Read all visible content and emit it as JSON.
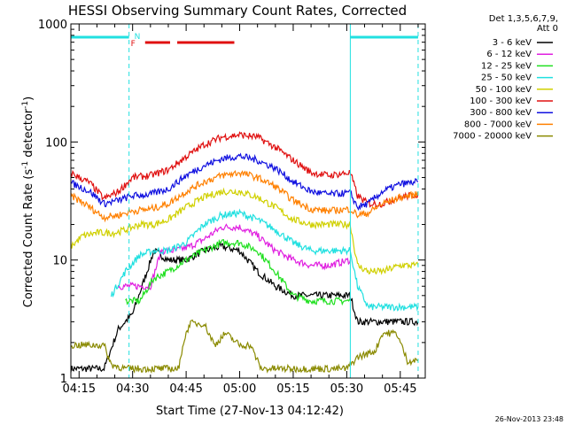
{
  "chart_data": {
    "type": "line",
    "title": "HESSI Observing Summary Count Rates, Corrected",
    "xlabel": "Start Time (27-Nov-13 04:12:42)",
    "ylabel_main": "Corrected Count Rate (s",
    "ylabel_sup1": "-1",
    "ylabel_mid": " detector",
    "ylabel_sup2": "-1",
    "ylabel_end": ")",
    "yscale": "log",
    "ylim": [
      1,
      1000
    ],
    "y_tick_labels": [
      "1",
      "10",
      "100",
      "1000"
    ],
    "x_tick_labels": [
      "04:15",
      "04:30",
      "04:45",
      "05:00",
      "05:15",
      "05:30",
      "05:45"
    ],
    "x_ticks_min": [
      255,
      270,
      285,
      300,
      315,
      330,
      345
    ],
    "xlim_min": [
      252.7,
      352
    ],
    "legend_header": [
      "Det 1,3,5,6,7,9,",
      "Att 0"
    ],
    "legend_position": "right",
    "timestamp": "26-Nov-2013 23:48",
    "flags": {
      "night": [
        [
          252.7,
          269
        ],
        [
          331,
          350
        ]
      ],
      "flare": [
        [
          273.5,
          280.5
        ],
        [
          282.5,
          298.5
        ]
      ],
      "night_label": "N",
      "flare_label": "F",
      "night_color": "#22e0e0",
      "flare_color": "#e01010"
    },
    "boundary_markers_min": [
      269,
      331,
      350
    ],
    "series": [
      {
        "name": "3 - 6 keV",
        "color": "#000000",
        "values": [
          [
            252.7,
            1.2
          ],
          [
            262,
            1.2
          ],
          [
            266,
            2.6
          ],
          [
            270,
            3.5
          ],
          [
            276,
            12
          ],
          [
            280,
            10
          ],
          [
            285,
            10
          ],
          [
            290,
            12
          ],
          [
            295,
            13
          ],
          [
            300,
            12
          ],
          [
            305,
            8
          ],
          [
            310,
            6
          ],
          [
            315,
            5
          ],
          [
            320,
            5
          ],
          [
            325,
            5
          ],
          [
            331,
            5
          ],
          [
            333,
            3
          ],
          [
            336,
            3
          ],
          [
            340,
            3
          ],
          [
            345,
            3
          ],
          [
            350,
            3
          ]
        ]
      },
      {
        "name": "6 - 12 keV",
        "color": "#e020e0",
        "values": [
          [
            266,
            6
          ],
          [
            270,
            6
          ],
          [
            275,
            6
          ],
          [
            278,
            12
          ],
          [
            282,
            12
          ],
          [
            286,
            13
          ],
          [
            290,
            15
          ],
          [
            295,
            19
          ],
          [
            300,
            19
          ],
          [
            305,
            16
          ],
          [
            310,
            12
          ],
          [
            315,
            10
          ],
          [
            320,
            9
          ],
          [
            325,
            9
          ],
          [
            331,
            10
          ]
        ]
      },
      {
        "name": "12 - 25 keV",
        "color": "#20e020",
        "values": [
          [
            268,
            4.5
          ],
          [
            272,
            4.5
          ],
          [
            276,
            7
          ],
          [
            280,
            8
          ],
          [
            285,
            10
          ],
          [
            290,
            12
          ],
          [
            295,
            14
          ],
          [
            300,
            14
          ],
          [
            305,
            12
          ],
          [
            310,
            8
          ],
          [
            315,
            5
          ],
          [
            320,
            4.5
          ],
          [
            325,
            4.5
          ],
          [
            331,
            4.5
          ]
        ]
      },
      {
        "name": "25 - 50 keV",
        "color": "#20e0e0",
        "values": [
          [
            264,
            5
          ],
          [
            268,
            8
          ],
          [
            272,
            11
          ],
          [
            276,
            12
          ],
          [
            280,
            12
          ],
          [
            285,
            14
          ],
          [
            290,
            20
          ],
          [
            295,
            24
          ],
          [
            300,
            25
          ],
          [
            305,
            22
          ],
          [
            310,
            18
          ],
          [
            315,
            14
          ],
          [
            320,
            12
          ],
          [
            325,
            12
          ],
          [
            331,
            12
          ],
          [
            333,
            6
          ],
          [
            336,
            4
          ],
          [
            340,
            4
          ],
          [
            345,
            4
          ],
          [
            350,
            4
          ]
        ]
      },
      {
        "name": "50 - 100 keV",
        "color": "#d0d000",
        "values": [
          [
            252.7,
            13
          ],
          [
            256,
            16
          ],
          [
            260,
            17
          ],
          [
            265,
            17
          ],
          [
            268,
            18
          ],
          [
            272,
            20
          ],
          [
            276,
            20
          ],
          [
            280,
            22
          ],
          [
            285,
            28
          ],
          [
            290,
            34
          ],
          [
            295,
            38
          ],
          [
            300,
            38
          ],
          [
            305,
            34
          ],
          [
            310,
            28
          ],
          [
            315,
            22
          ],
          [
            320,
            20
          ],
          [
            325,
            20
          ],
          [
            331,
            20
          ],
          [
            333,
            9
          ],
          [
            336,
            8
          ],
          [
            340,
            8
          ],
          [
            345,
            9
          ],
          [
            350,
            9
          ]
        ]
      },
      {
        "name": "100 - 300 keV",
        "color": "#e01010",
        "values": [
          [
            252.7,
            55
          ],
          [
            255,
            50
          ],
          [
            258,
            45
          ],
          [
            262,
            33
          ],
          [
            266,
            38
          ],
          [
            270,
            50
          ],
          [
            275,
            52
          ],
          [
            280,
            58
          ],
          [
            285,
            75
          ],
          [
            290,
            95
          ],
          [
            295,
            110
          ],
          [
            300,
            115
          ],
          [
            305,
            110
          ],
          [
            310,
            90
          ],
          [
            315,
            70
          ],
          [
            320,
            55
          ],
          [
            325,
            52
          ],
          [
            331,
            55
          ],
          [
            333,
            35
          ],
          [
            336,
            30
          ],
          [
            340,
            30
          ],
          [
            345,
            34
          ],
          [
            350,
            36
          ]
        ]
      },
      {
        "name": "300 - 800 keV",
        "color": "#1010e0",
        "values": [
          [
            252.7,
            45
          ],
          [
            255,
            42
          ],
          [
            258,
            38
          ],
          [
            262,
            30
          ],
          [
            266,
            32
          ],
          [
            270,
            35
          ],
          [
            275,
            36
          ],
          [
            280,
            40
          ],
          [
            285,
            52
          ],
          [
            290,
            63
          ],
          [
            295,
            72
          ],
          [
            300,
            76
          ],
          [
            305,
            70
          ],
          [
            310,
            60
          ],
          [
            315,
            46
          ],
          [
            320,
            38
          ],
          [
            325,
            36
          ],
          [
            331,
            37
          ],
          [
            333,
            28
          ],
          [
            336,
            30
          ],
          [
            340,
            38
          ],
          [
            345,
            44
          ],
          [
            350,
            46
          ]
        ]
      },
      {
        "name": "800 - 7000 keV",
        "color": "#ff8000",
        "values": [
          [
            252.7,
            35
          ],
          [
            255,
            32
          ],
          [
            258,
            28
          ],
          [
            262,
            23
          ],
          [
            266,
            24
          ],
          [
            270,
            26
          ],
          [
            275,
            27
          ],
          [
            280,
            30
          ],
          [
            285,
            38
          ],
          [
            290,
            46
          ],
          [
            295,
            52
          ],
          [
            300,
            55
          ],
          [
            305,
            50
          ],
          [
            310,
            42
          ],
          [
            315,
            32
          ],
          [
            320,
            27
          ],
          [
            325,
            26
          ],
          [
            331,
            27
          ],
          [
            333,
            24
          ],
          [
            336,
            25
          ],
          [
            340,
            30
          ],
          [
            345,
            34
          ],
          [
            350,
            36
          ]
        ]
      },
      {
        "name": "7000 - 20000 keV",
        "color": "#8a8a00",
        "values": [
          [
            252.7,
            1.9
          ],
          [
            262,
            1.9
          ],
          [
            264,
            1.3
          ],
          [
            268,
            1.2
          ],
          [
            276,
            1.2
          ],
          [
            283,
            1.2
          ],
          [
            284,
            1.9
          ],
          [
            286,
            2.9
          ],
          [
            290,
            2.9
          ],
          [
            293,
            1.9
          ],
          [
            296,
            2.4
          ],
          [
            300,
            1.9
          ],
          [
            303,
            1.9
          ],
          [
            306,
            1.2
          ],
          [
            310,
            1.2
          ],
          [
            320,
            1.2
          ],
          [
            330,
            1.2
          ],
          [
            333,
            1.5
          ],
          [
            338,
            1.7
          ],
          [
            340,
            2.4
          ],
          [
            344,
            2.4
          ],
          [
            347,
            1.4
          ],
          [
            350,
            1.4
          ]
        ]
      }
    ]
  }
}
